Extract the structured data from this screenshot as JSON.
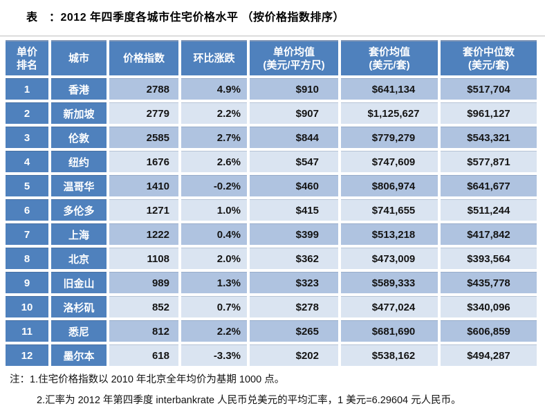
{
  "title": "表　：2012 年四季度各城市住宅价格水平 （按价格指数排序）",
  "table": {
    "columns": [
      {
        "line1": "单价",
        "line2": "排名"
      },
      {
        "line1": "城市",
        "line2": ""
      },
      {
        "line1": "价格指数",
        "line2": ""
      },
      {
        "line1": "环比涨跌",
        "line2": ""
      },
      {
        "line1": "单价均值",
        "line2": "(美元/平方尺)"
      },
      {
        "line1": "套价均值",
        "line2": "(美元/套)"
      },
      {
        "line1": "套价中位数",
        "line2": "(美元/套)"
      }
    ],
    "rows": [
      {
        "rank": "1",
        "city": "香港",
        "index": "2788",
        "change": "4.9%",
        "unit_avg": "$910",
        "total_avg": "$641,134",
        "total_median": "$517,704"
      },
      {
        "rank": "2",
        "city": "新加坡",
        "index": "2779",
        "change": "2.2%",
        "unit_avg": "$907",
        "total_avg": "$1,125,627",
        "total_median": "$961,127"
      },
      {
        "rank": "3",
        "city": "伦敦",
        "index": "2585",
        "change": "2.7%",
        "unit_avg": "$844",
        "total_avg": "$779,279",
        "total_median": "$543,321"
      },
      {
        "rank": "4",
        "city": "纽约",
        "index": "1676",
        "change": "2.6%",
        "unit_avg": "$547",
        "total_avg": "$747,609",
        "total_median": "$577,871"
      },
      {
        "rank": "5",
        "city": "温哥华",
        "index": "1410",
        "change": "-0.2%",
        "unit_avg": "$460",
        "total_avg": "$806,974",
        "total_median": "$641,677"
      },
      {
        "rank": "6",
        "city": "多伦多",
        "index": "1271",
        "change": "1.0%",
        "unit_avg": "$415",
        "total_avg": "$741,655",
        "total_median": "$511,244"
      },
      {
        "rank": "7",
        "city": "上海",
        "index": "1222",
        "change": "0.4%",
        "unit_avg": "$399",
        "total_avg": "$513,218",
        "total_median": "$417,842"
      },
      {
        "rank": "8",
        "city": "北京",
        "index": "1108",
        "change": "2.0%",
        "unit_avg": "$362",
        "total_avg": "$473,009",
        "total_median": "$393,564"
      },
      {
        "rank": "9",
        "city": "旧金山",
        "index": "989",
        "change": "1.3%",
        "unit_avg": "$323",
        "total_avg": "$589,333",
        "total_median": "$435,778"
      },
      {
        "rank": "10",
        "city": "洛杉矶",
        "index": "852",
        "change": "0.7%",
        "unit_avg": "$278",
        "total_avg": "$477,024",
        "total_median": "$340,096"
      },
      {
        "rank": "11",
        "city": "悉尼",
        "index": "812",
        "change": "2.2%",
        "unit_avg": "$265",
        "total_avg": "$681,690",
        "total_median": "$606,859"
      },
      {
        "rank": "12",
        "city": "墨尔本",
        "index": "618",
        "change": "-3.3%",
        "unit_avg": "$202",
        "total_avg": "$538,162",
        "total_median": "$494,287"
      }
    ]
  },
  "notes": [
    "注：1.住宅价格指数以 2010 年北京全年均价为基期 1000 点。",
    "2.汇率为 2012 年第四季度 interbankrate 人民币兑美元的平均汇率，1 美元=6.29604 元人民币。"
  ],
  "colors": {
    "header_bg": "#4f81bd",
    "row_dark": "#afc3e0",
    "row_light": "#dae4f1"
  }
}
